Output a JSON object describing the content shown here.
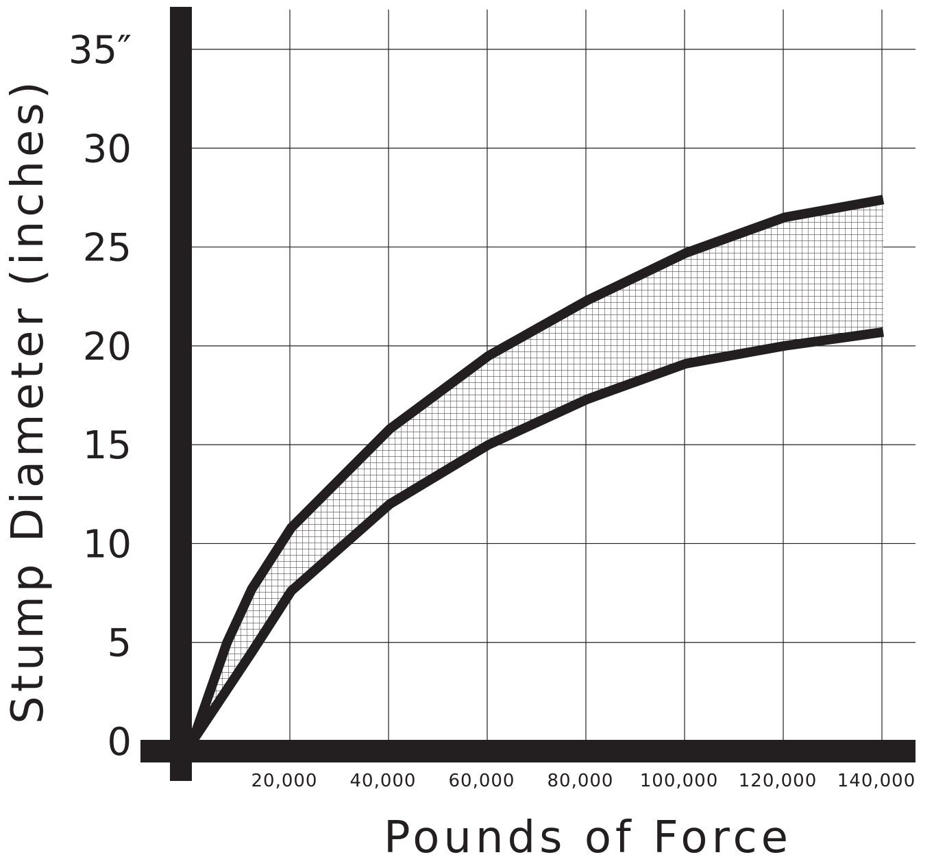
{
  "chart_data": {
    "type": "area",
    "xlabel": "Pounds of Force",
    "ylabel": "Stump Diameter (inches)",
    "xlim": [
      0,
      140000
    ],
    "ylim": [
      0,
      35
    ],
    "grid": true,
    "x_ticks": [
      {
        "value": 20000,
        "label": "20,000"
      },
      {
        "value": 40000,
        "label": "40,000"
      },
      {
        "value": 60000,
        "label": "60,000"
      },
      {
        "value": 80000,
        "label": "80,000"
      },
      {
        "value": 100000,
        "label": "100,000"
      },
      {
        "value": 120000,
        "label": "120,000"
      },
      {
        "value": 140000,
        "label": "140,000"
      }
    ],
    "y_ticks": [
      {
        "value": 0,
        "label": "0"
      },
      {
        "value": 5,
        "label": "5"
      },
      {
        "value": 10,
        "label": "10"
      },
      {
        "value": 15,
        "label": "15"
      },
      {
        "value": 20,
        "label": "20"
      },
      {
        "value": 25,
        "label": "25"
      },
      {
        "value": 30,
        "label": "30"
      },
      {
        "value": 35,
        "label": "35″"
      }
    ],
    "series": [
      {
        "x": [
          0,
          7000,
          12000,
          20000,
          40000,
          60000,
          80000,
          100000,
          120000,
          140000
        ],
        "y": [
          0,
          5.0,
          7.7,
          10.8,
          15.8,
          19.5,
          22.3,
          24.7,
          26.5,
          27.4
        ]
      },
      {
        "x": [
          0,
          12000,
          20000,
          40000,
          60000,
          80000,
          100000,
          120000,
          140000
        ],
        "y": [
          0,
          4.5,
          7.6,
          12.0,
          15.0,
          17.3,
          19.1,
          20.0,
          20.7
        ]
      }
    ],
    "band_fill": "crosshatch",
    "colors": {
      "ink": "#231f20",
      "background": "#ffffff"
    }
  }
}
